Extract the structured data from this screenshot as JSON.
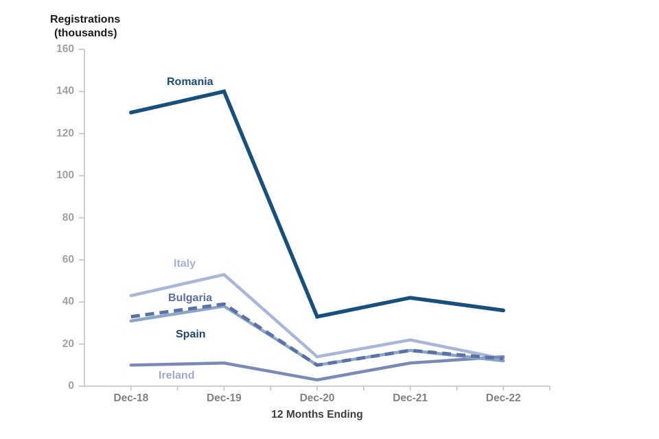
{
  "page": {
    "background": "#FFFFFF"
  },
  "chart_data": {
    "type": "line",
    "title": "",
    "y_axis": {
      "title_line1": "Registrations",
      "title_line2": "(thousands)",
      "min": 0,
      "max": 160,
      "tick_step": 20,
      "ticks": [
        0,
        20,
        40,
        60,
        80,
        100,
        120,
        140,
        160
      ],
      "tick_labels": [
        "0",
        "20",
        "40",
        "60",
        "80",
        "100",
        "120",
        "140",
        "160"
      ]
    },
    "x_axis": {
      "title": "12 Months Ending",
      "categories": [
        "Dec-18",
        "Dec-19",
        "Dec-20",
        "Dec-21",
        "Dec-22"
      ]
    },
    "series": [
      {
        "name": "Romania",
        "values": [
          130,
          140,
          33,
          42,
          36
        ],
        "color": "#17507D",
        "label_color": "#1B4B78",
        "style": "solid",
        "width": 5.5
      },
      {
        "name": "Italy",
        "values": [
          43,
          53,
          14,
          22,
          13
        ],
        "color": "#A9B6D7",
        "label_color": "#A6B3D5",
        "style": "solid",
        "width": 4.5
      },
      {
        "name": "Bulgaria",
        "values": [
          33,
          39,
          10,
          17,
          13
        ],
        "color": "#5B71A8",
        "label_color": "#5A6CA4",
        "style": "dashed",
        "width": 5
      },
      {
        "name": "Spain",
        "values": [
          31,
          38,
          10,
          17,
          12
        ],
        "color": "#8BA7C4",
        "label_color": "#1F4769",
        "style": "solid",
        "width": 4.5
      },
      {
        "name": "Ireland",
        "values": [
          10,
          11,
          3,
          11,
          14
        ],
        "color": "#7A8AB5",
        "label_color": "#A0A9CE",
        "style": "solid",
        "width": 4.5
      }
    ],
    "grid": false,
    "legend_position": "inline-labels",
    "axis_color": "#BFBFBF",
    "y_tick_label_color": "#A0A0A0",
    "x_tick_label_color": "#808080",
    "axis_title_color": "#3E3E3E",
    "ylim": [
      0,
      160
    ]
  }
}
